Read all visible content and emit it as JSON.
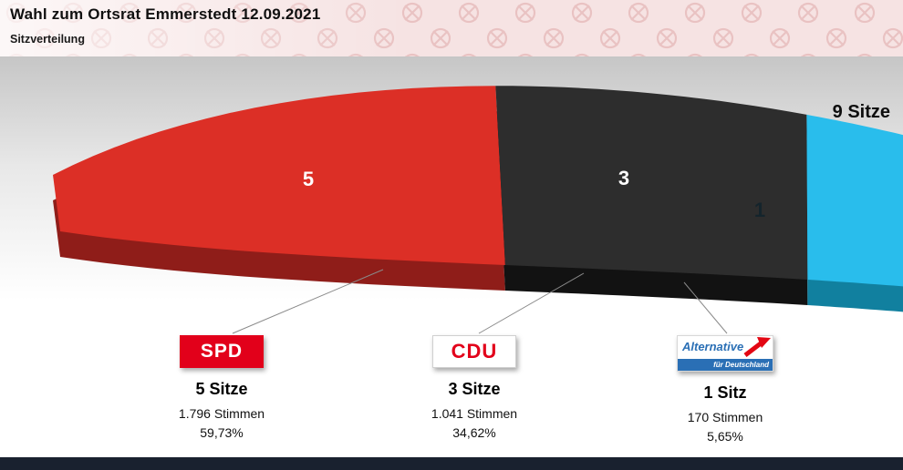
{
  "header": {
    "title": "Wahl zum Ortsrat Emmerstedt 12.09.2021",
    "subtitle": "Sitzverteilung"
  },
  "chart_data": {
    "type": "pie",
    "variant": "arc-seat-distribution-3d",
    "title": "Sitzverteilung",
    "total_seats": 9,
    "total_label": "9 Sitze",
    "legend_position": "bottom",
    "parties": [
      {
        "id": "spd",
        "name": "SPD",
        "seats": 5,
        "seats_label": "5 Sitze",
        "votes": 1796,
        "votes_label": "1.796 Stimmen",
        "percent": 59.73,
        "percent_label": "59,73%",
        "color": "#dc2f26",
        "color_dark": "#8f1d19"
      },
      {
        "id": "cdu",
        "name": "CDU",
        "seats": 3,
        "seats_label": "3 Sitze",
        "votes": 1041,
        "votes_label": "1.041 Stimmen",
        "percent": 34.62,
        "percent_label": "34,62%",
        "color": "#2d2d2d",
        "color_dark": "#121212"
      },
      {
        "id": "afd",
        "name": "AfD",
        "seats": 1,
        "seats_label": "1 Sitz",
        "votes": 170,
        "votes_label": "170 Stimmen",
        "percent": 5.65,
        "percent_label": "5,65%",
        "color": "#29bdec",
        "color_dark": "#11809f",
        "logo_line1": "Alternative",
        "logo_line2": "für Deutschland"
      }
    ]
  }
}
